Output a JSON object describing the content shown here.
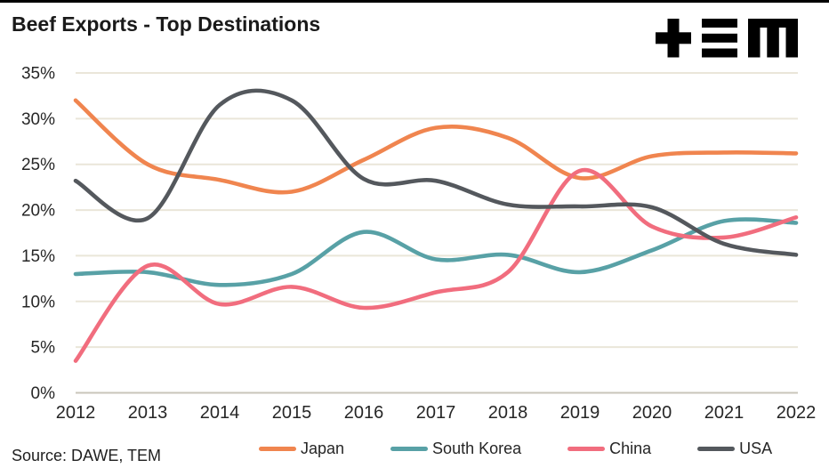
{
  "header": {
    "title": "Beef Exports - Top Destinations",
    "logo": {
      "name": "TEM",
      "glyphs": [
        "plus",
        "triple-bar",
        "block-m"
      ],
      "color": "#000000"
    }
  },
  "footer": {
    "source": "Source: DAWE, TEM"
  },
  "colors": {
    "background": "#ffffff",
    "grid": "#EAE6D9",
    "grid_zero": "#C9C5BA",
    "text": "#262626",
    "japan": "#F0854F",
    "south_korea": "#58A1A6",
    "china": "#F16D7E",
    "usa": "#54585D"
  },
  "chart_data": {
    "type": "line",
    "title": "Beef Exports - Top Destinations",
    "x": [
      2012,
      2013,
      2014,
      2015,
      2016,
      2017,
      2018,
      2019,
      2020,
      2021,
      2022
    ],
    "x_tick_labels": [
      "2012",
      "2013",
      "2014",
      "2015",
      "2016",
      "2017",
      "2018",
      "2019",
      "2020",
      "2021",
      "2022"
    ],
    "y_axis": {
      "min": 0,
      "max": 35,
      "tick_step": 5,
      "tick_suffix": "%"
    },
    "y_tick_labels": [
      "0%",
      "5%",
      "10%",
      "15%",
      "20%",
      "25%",
      "30%",
      "35%"
    ],
    "grid": "horizontal",
    "line_style": "smooth",
    "legend_position": "bottom",
    "series": [
      {
        "name": "Japan",
        "color": "#F0854F",
        "values": [
          32.0,
          25.0,
          23.3,
          22.0,
          25.5,
          29.0,
          27.9,
          23.5,
          25.9,
          26.3,
          26.2
        ]
      },
      {
        "name": "South Korea",
        "color": "#58A1A6",
        "values": [
          13.0,
          13.2,
          11.8,
          13.0,
          17.6,
          14.6,
          15.1,
          13.2,
          15.6,
          18.8,
          18.6
        ]
      },
      {
        "name": "China",
        "color": "#F16D7E",
        "values": [
          3.5,
          13.9,
          9.7,
          11.6,
          9.3,
          11.0,
          13.2,
          24.3,
          18.2,
          17.0,
          19.2
        ]
      },
      {
        "name": "USA",
        "color": "#54585D",
        "values": [
          23.2,
          19.1,
          31.5,
          32.0,
          23.4,
          23.2,
          20.6,
          20.4,
          20.3,
          16.3,
          15.1
        ]
      }
    ]
  }
}
